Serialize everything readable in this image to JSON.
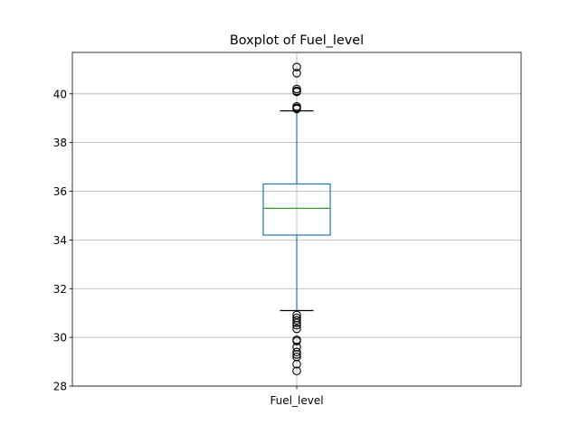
{
  "chart_data": {
    "type": "boxplot",
    "title": "Boxplot of Fuel_level",
    "xlabel": "",
    "ylabel": "",
    "categories": [
      "Fuel_level"
    ],
    "ylim": [
      28,
      41.7
    ],
    "yticks": [
      28,
      30,
      32,
      34,
      36,
      38,
      40
    ],
    "grid": true,
    "box": {
      "whisker_low": 31.1,
      "q1": 34.2,
      "median": 35.3,
      "q3": 36.3,
      "whisker_high": 39.3
    },
    "outliers": [
      41.1,
      40.85,
      40.2,
      40.12,
      40.08,
      39.48,
      39.42,
      39.38,
      30.92,
      30.8,
      30.7,
      30.6,
      30.5,
      30.35,
      29.9,
      29.85,
      29.6,
      29.4,
      29.3,
      29.2,
      28.9,
      28.62
    ],
    "colors": {
      "box": "#1f77b4",
      "median": "#2ca02c",
      "caps": "#000000",
      "outlier_edge": "#000000",
      "grid": "#b0b0b0"
    }
  }
}
